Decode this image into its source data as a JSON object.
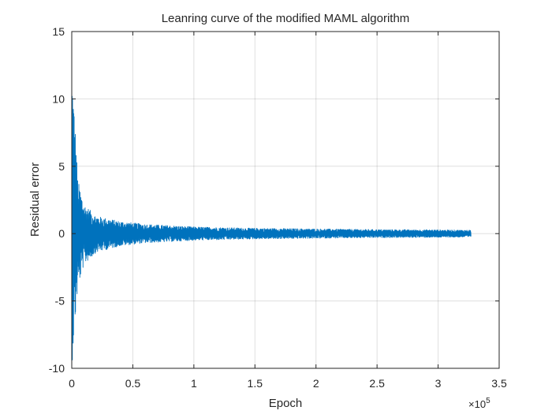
{
  "chart_data": {
    "type": "line",
    "title": "Leanring curve of the modified MAML algorithm",
    "xlabel": "Epoch",
    "ylabel": "Residual error",
    "xlim": [
      0,
      3.5
    ],
    "ylim": [
      -10,
      15
    ],
    "x_scale_factor_label": {
      "base": "×10",
      "exponent": "5"
    },
    "xticks": [
      0,
      0.5,
      1,
      1.5,
      2,
      2.5,
      3,
      3.5
    ],
    "xtick_labels": [
      "0",
      "0.5",
      "1",
      "1.5",
      "2",
      "2.5",
      "3",
      "3.5"
    ],
    "yticks": [
      -10,
      -5,
      0,
      5,
      10,
      15
    ],
    "ytick_labels": [
      "-10",
      "-5",
      "0",
      "5",
      "10",
      "15"
    ],
    "grid": true,
    "box": true,
    "series": [
      {
        "color": "#0072BD",
        "x_range": [
          0,
          3.27
        ],
        "description_points": {
          "x": [
            0,
            0.02,
            0.05,
            0.1,
            0.2,
            0.4,
            0.6,
            1.0,
            1.5,
            2.0,
            2.5,
            3.0,
            3.27
          ],
          "upper_envelope": [
            13,
            9.5,
            4,
            2.2,
            1.3,
            0.9,
            0.7,
            0.5,
            0.4,
            0.35,
            0.3,
            0.28,
            0.26
          ],
          "lower_envelope": [
            -10,
            -7.5,
            -4,
            -2.3,
            -1.4,
            -0.9,
            -0.7,
            -0.5,
            -0.4,
            -0.35,
            -0.3,
            -0.28,
            -0.26
          ]
        }
      }
    ]
  }
}
